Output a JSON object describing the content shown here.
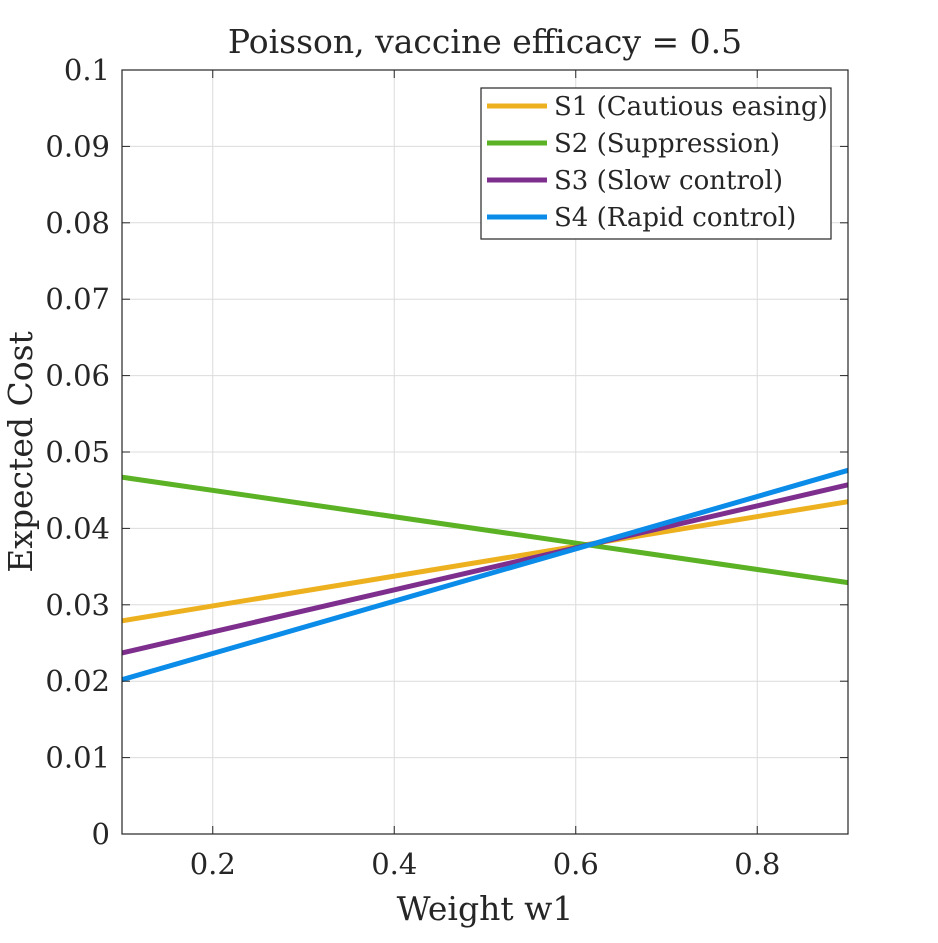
{
  "chart_data": {
    "type": "line",
    "title": "Poisson, vaccine efficacy = 0.5",
    "xlabel": "Weight w1",
    "ylabel": "Expected Cost",
    "xlim": [
      0.1,
      0.9
    ],
    "ylim": [
      0,
      0.1
    ],
    "xticks": [
      0.2,
      0.4,
      0.6,
      0.8
    ],
    "xtick_labels": [
      "0.2",
      "0.4",
      "0.6",
      "0.8"
    ],
    "yticks": [
      0,
      0.01,
      0.02,
      0.03,
      0.04,
      0.05,
      0.06,
      0.07,
      0.08,
      0.09,
      0.1
    ],
    "ytick_labels": [
      "0",
      "0.01",
      "0.02",
      "0.03",
      "0.04",
      "0.05",
      "0.06",
      "0.07",
      "0.08",
      "0.09",
      "0.1"
    ],
    "grid": true,
    "legend_position": "top-right",
    "series": [
      {
        "name": "S1 (Cautious easing)",
        "color": "#EDB120",
        "x": [
          0.1,
          0.9
        ],
        "y": [
          0.0279,
          0.0435
        ]
      },
      {
        "name": "S2 (Suppression)",
        "color": "#5BB224",
        "x": [
          0.1,
          0.9
        ],
        "y": [
          0.0467,
          0.0329
        ]
      },
      {
        "name": "S3 (Slow control)",
        "color": "#7E2F8E",
        "x": [
          0.1,
          0.9
        ],
        "y": [
          0.0237,
          0.0457
        ]
      },
      {
        "name": "S4 (Rapid control)",
        "color": "#0A8CE8",
        "x": [
          0.1,
          0.9
        ],
        "y": [
          0.0202,
          0.0476
        ]
      }
    ]
  }
}
